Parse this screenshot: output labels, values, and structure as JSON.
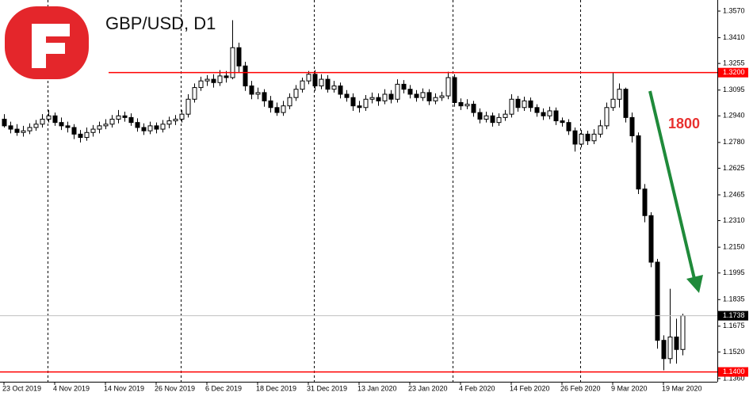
{
  "chart_data": {
    "type": "candlestick",
    "title": "GBP/USD, D1",
    "annotation": "1800",
    "annotation_color": "#e8312f",
    "up_color": "#ffffff",
    "down_color": "#000000",
    "level_color": "#ff0000",
    "levels": [
      {
        "value": 1.32,
        "label": "1.3200"
      },
      {
        "value": 1.14,
        "label": "1.1400"
      }
    ],
    "last_price": {
      "value": 1.1738,
      "label": "1.1738"
    },
    "ylim": [
      1.136,
      1.357
    ],
    "yticks": [
      {
        "value": 1.357,
        "label": "1.3570"
      },
      {
        "value": 1.341,
        "label": "1.3410"
      },
      {
        "value": 1.3255,
        "label": "1.3255"
      },
      {
        "value": 1.3095,
        "label": "1.3095"
      },
      {
        "value": 1.294,
        "label": "1.2940"
      },
      {
        "value": 1.278,
        "label": "1.2780"
      },
      {
        "value": 1.2625,
        "label": "1.2625"
      },
      {
        "value": 1.2465,
        "label": "1.2465"
      },
      {
        "value": 1.231,
        "label": "1.2310"
      },
      {
        "value": 1.215,
        "label": "1.2150"
      },
      {
        "value": 1.1995,
        "label": "1.1995"
      },
      {
        "value": 1.1835,
        "label": "1.1835"
      },
      {
        "value": 1.1675,
        "label": "1.1675"
      },
      {
        "value": 1.152,
        "label": "1.1520"
      },
      {
        "value": 1.136,
        "label": "1.1360"
      }
    ],
    "categories": [
      "23 Oct 2019",
      null,
      null,
      null,
      null,
      null,
      null,
      null,
      "4 Nov 2019",
      null,
      null,
      null,
      null,
      null,
      null,
      null,
      "14 Nov 2019",
      null,
      null,
      null,
      null,
      null,
      null,
      null,
      "26 Nov 2019",
      null,
      null,
      null,
      null,
      null,
      null,
      null,
      "6 Dec 2019",
      null,
      null,
      null,
      null,
      null,
      null,
      null,
      "18 Dec 2019",
      null,
      null,
      null,
      null,
      null,
      null,
      null,
      "31 Dec 2019",
      null,
      null,
      null,
      null,
      null,
      null,
      null,
      "13 Jan 2020",
      null,
      null,
      null,
      null,
      null,
      null,
      null,
      "23 Jan 2020",
      null,
      null,
      null,
      null,
      null,
      null,
      null,
      "4 Feb 2020",
      null,
      null,
      null,
      null,
      null,
      null,
      null,
      "14 Feb 2020",
      null,
      null,
      null,
      null,
      null,
      null,
      null,
      "26 Feb 2020",
      null,
      null,
      null,
      null,
      null,
      null,
      null,
      "9 Mar 2020",
      null,
      null,
      null,
      null,
      null,
      null,
      null,
      "19 Mar 2020",
      null,
      null,
      null
    ],
    "open": [
      1.292,
      1.288,
      1.286,
      1.284,
      1.285,
      1.287,
      1.289,
      1.292,
      1.294,
      1.29,
      1.288,
      1.287,
      1.283,
      1.281,
      1.284,
      1.286,
      1.288,
      1.289,
      1.292,
      1.294,
      1.293,
      1.29,
      1.287,
      1.285,
      1.288,
      1.286,
      1.289,
      1.291,
      1.292,
      1.295,
      1.304,
      1.311,
      1.315,
      1.316,
      1.314,
      1.318,
      1.317,
      1.335,
      1.324,
      1.312,
      1.307,
      1.308,
      1.303,
      1.299,
      1.296,
      1.3,
      1.305,
      1.31,
      1.315,
      1.319,
      1.312,
      1.316,
      1.31,
      1.312,
      1.307,
      1.305,
      1.3,
      1.299,
      1.304,
      1.305,
      1.303,
      1.307,
      1.304,
      1.313,
      1.31,
      1.307,
      1.305,
      1.308,
      1.303,
      1.305,
      1.306,
      1.317,
      1.302,
      1.3,
      1.301,
      1.296,
      1.292,
      1.294,
      1.29,
      1.293,
      1.295,
      1.304,
      1.299,
      1.303,
      1.299,
      1.296,
      1.294,
      1.297,
      1.291,
      1.29,
      1.285,
      1.277,
      1.283,
      1.279,
      1.283,
      1.288,
      1.299,
      1.304,
      1.31,
      1.293,
      1.282,
      1.25,
      1.234,
      1.206,
      1.159,
      1.148,
      1.161,
      1.1535
    ],
    "high": [
      1.295,
      1.2905,
      1.289,
      1.288,
      1.2895,
      1.2915,
      1.295,
      1.2975,
      1.296,
      1.293,
      1.2905,
      1.289,
      1.2855,
      1.287,
      1.2885,
      1.2905,
      1.292,
      1.2945,
      1.2975,
      1.2965,
      1.2955,
      1.2925,
      1.2895,
      1.2905,
      1.29,
      1.2915,
      1.2935,
      1.2945,
      1.2975,
      1.307,
      1.3135,
      1.3175,
      1.3185,
      1.319,
      1.3215,
      1.321,
      1.3515,
      1.338,
      1.3265,
      1.315,
      1.311,
      1.31,
      1.306,
      1.302,
      1.303,
      1.3075,
      1.3125,
      1.317,
      1.321,
      1.3215,
      1.319,
      1.3185,
      1.315,
      1.314,
      1.3095,
      1.3075,
      1.303,
      1.3065,
      1.308,
      1.3075,
      1.31,
      1.3095,
      1.316,
      1.3155,
      1.3125,
      1.3095,
      1.3105,
      1.31,
      1.3075,
      1.3085,
      1.3205,
      1.319,
      1.3045,
      1.304,
      1.303,
      1.2985,
      1.2965,
      1.296,
      1.2955,
      1.2975,
      1.307,
      1.306,
      1.3055,
      1.305,
      1.301,
      1.2985,
      1.2995,
      1.299,
      1.293,
      1.292,
      1.287,
      1.2855,
      1.285,
      1.286,
      1.2915,
      1.302,
      1.32,
      1.3135,
      1.311,
      1.296,
      1.284,
      1.253,
      1.236,
      1.208,
      1.162,
      1.19,
      1.172,
      1.175
    ],
    "low": [
      1.287,
      1.2835,
      1.282,
      1.2815,
      1.283,
      1.285,
      1.287,
      1.29,
      1.288,
      1.2855,
      1.284,
      1.28,
      1.278,
      1.279,
      1.2815,
      1.2835,
      1.286,
      1.287,
      1.2895,
      1.2905,
      1.288,
      1.2845,
      1.2825,
      1.283,
      1.2835,
      1.284,
      1.2865,
      1.2885,
      1.29,
      1.293,
      1.302,
      1.309,
      1.312,
      1.311,
      1.312,
      1.314,
      1.316,
      1.32,
      1.309,
      1.304,
      1.304,
      1.2995,
      1.296,
      1.294,
      1.294,
      1.298,
      1.303,
      1.308,
      1.313,
      1.309,
      1.31,
      1.308,
      1.308,
      1.3045,
      1.3025,
      1.297,
      1.296,
      1.297,
      1.3015,
      1.3,
      1.301,
      1.3015,
      1.302,
      1.3075,
      1.3045,
      1.3025,
      1.303,
      1.3005,
      1.301,
      1.303,
      1.304,
      1.2995,
      1.2975,
      1.298,
      1.2935,
      1.2895,
      1.29,
      1.2875,
      1.288,
      1.291,
      1.293,
      1.2965,
      1.297,
      1.2965,
      1.2935,
      1.2915,
      1.292,
      1.2885,
      1.2875,
      1.2825,
      1.2725,
      1.275,
      1.2765,
      1.277,
      1.281,
      1.286,
      1.297,
      1.299,
      1.29,
      1.278,
      1.247,
      1.23,
      1.203,
      1.154,
      1.141,
      1.145,
      1.145,
      1.15
    ],
    "close": [
      1.288,
      1.286,
      1.284,
      1.285,
      1.287,
      1.289,
      1.292,
      1.294,
      1.29,
      1.288,
      1.287,
      1.283,
      1.281,
      1.284,
      1.286,
      1.288,
      1.289,
      1.292,
      1.294,
      1.293,
      1.29,
      1.287,
      1.285,
      1.288,
      1.286,
      1.289,
      1.291,
      1.292,
      1.295,
      1.304,
      1.311,
      1.315,
      1.316,
      1.314,
      1.318,
      1.317,
      1.335,
      1.324,
      1.312,
      1.307,
      1.308,
      1.303,
      1.299,
      1.296,
      1.3,
      1.305,
      1.31,
      1.315,
      1.319,
      1.312,
      1.316,
      1.31,
      1.312,
      1.307,
      1.305,
      1.3,
      1.299,
      1.304,
      1.305,
      1.303,
      1.307,
      1.304,
      1.313,
      1.31,
      1.307,
      1.305,
      1.308,
      1.303,
      1.305,
      1.306,
      1.317,
      1.302,
      1.3,
      1.301,
      1.296,
      1.292,
      1.294,
      1.29,
      1.293,
      1.295,
      1.304,
      1.299,
      1.303,
      1.299,
      1.296,
      1.294,
      1.297,
      1.291,
      1.29,
      1.285,
      1.277,
      1.283,
      1.279,
      1.283,
      1.288,
      1.299,
      1.304,
      1.31,
      1.293,
      1.282,
      1.25,
      1.234,
      1.206,
      1.159,
      1.148,
      1.161,
      1.1535,
      1.1738
    ]
  }
}
